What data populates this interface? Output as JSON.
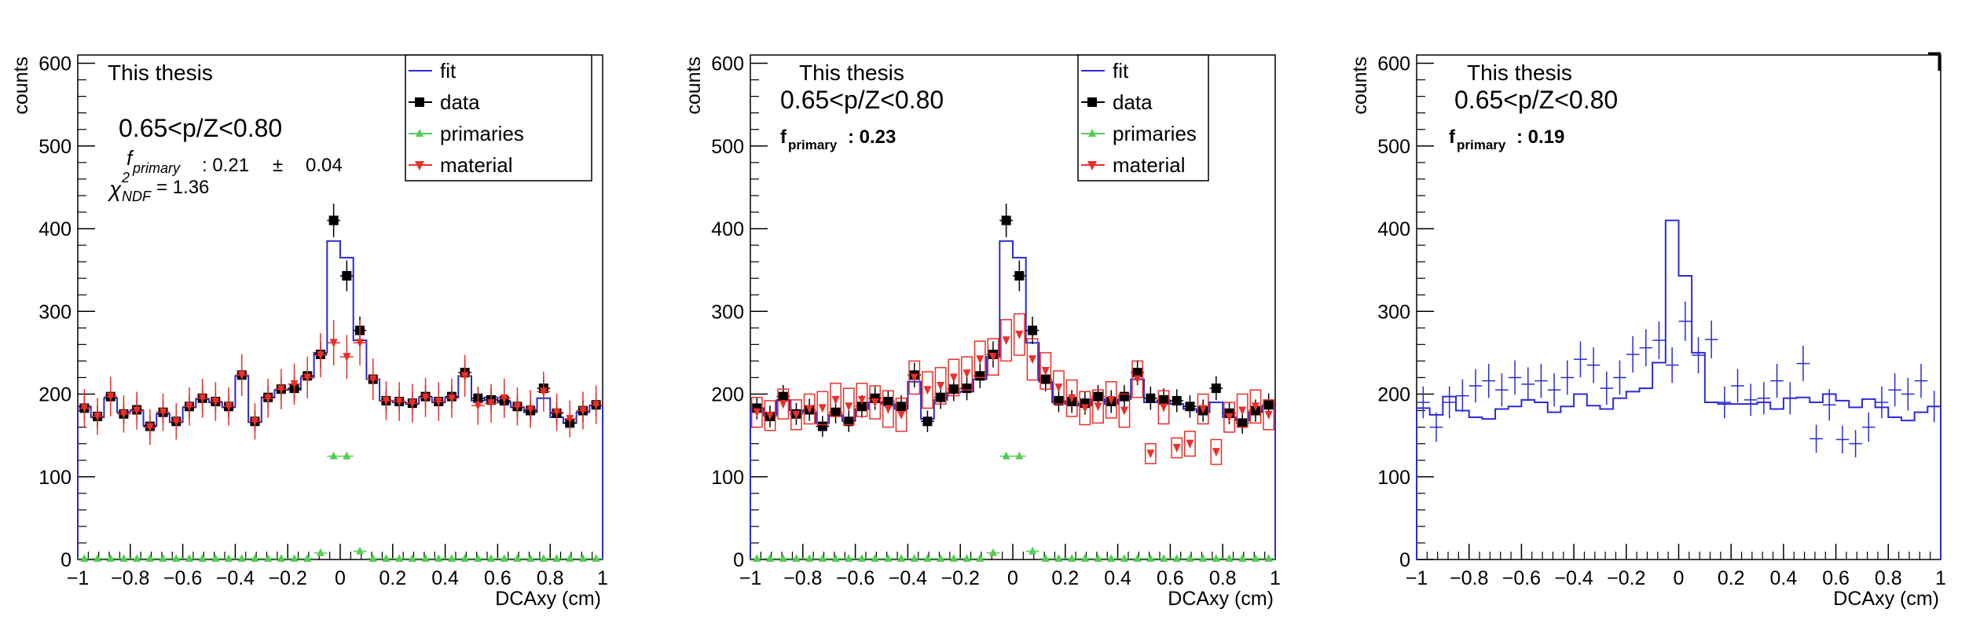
{
  "chart_data": [
    {
      "type": "line",
      "panel": "left",
      "x": [
        -0.975,
        -0.925,
        -0.875,
        -0.825,
        -0.775,
        -0.725,
        -0.675,
        -0.625,
        -0.575,
        -0.525,
        -0.475,
        -0.425,
        -0.375,
        -0.325,
        -0.275,
        -0.225,
        -0.175,
        -0.125,
        -0.075,
        -0.025,
        0.025,
        0.075,
        0.125,
        0.175,
        0.225,
        0.275,
        0.325,
        0.375,
        0.425,
        0.475,
        0.525,
        0.575,
        0.625,
        0.675,
        0.725,
        0.775,
        0.825,
        0.875,
        0.925,
        0.975
      ],
      "xlabel": "DCAxy (cm)",
      "ylabel": "counts",
      "xlim": [
        -1,
        1
      ],
      "ylim": [
        0,
        610
      ],
      "x_ticks": [
        "−1",
        "−0.8",
        "−0.6",
        "−0.4",
        "−0.2",
        "0",
        "0.2",
        "0.4",
        "0.6",
        "0.8",
        "1"
      ],
      "y_ticks": [
        "0",
        "100",
        "200",
        "300",
        "400",
        "500",
        "600"
      ],
      "annotations": {
        "label": "This thesis",
        "range": "0.65<p/Z<0.80",
        "fprimary_symbol": "f",
        "fprimary_sub": "primary",
        "fprimary_value": ": 0.21",
        "fprimary_pm": "±",
        "fprimary_err": "0.04",
        "chi2_symbol": "χ",
        "chi2_sup": "2",
        "chi2_sub": "NDF",
        "chi2_value": "= 1.36"
      },
      "legend": {
        "placement": "top-center",
        "entries": [
          "fit",
          "data",
          "primaries",
          "material"
        ]
      },
      "series": [
        {
          "name": "fit",
          "color": "#2b2bd6",
          "style": "step",
          "y": [
            185,
            172,
            195,
            178,
            180,
            162,
            176,
            166,
            184,
            194,
            190,
            184,
            222,
            166,
            196,
            205,
            205,
            220,
            250,
            385,
            365,
            265,
            218,
            192,
            190,
            188,
            196,
            190,
            196,
            222,
            192,
            196,
            190,
            184,
            178,
            195,
            172,
            165,
            178,
            186
          ]
        },
        {
          "name": "data",
          "color": "#000000",
          "style": "markers",
          "y": [
            183,
            173,
            197,
            176,
            181,
            161,
            178,
            167,
            185,
            195,
            191,
            185,
            223,
            167,
            196,
            206,
            207,
            222,
            248,
            410,
            343,
            277,
            218,
            192,
            191,
            189,
            197,
            191,
            197,
            226,
            195,
            193,
            192,
            185,
            180,
            207,
            177,
            165,
            180,
            187
          ]
        },
        {
          "name": "primaries",
          "color": "#55cc55",
          "style": "triangles",
          "y": [
            1,
            1,
            1,
            1,
            1,
            1,
            1,
            1,
            1,
            1,
            1,
            1,
            1,
            1,
            1,
            1,
            1,
            1,
            8,
            125,
            125,
            10,
            1,
            1,
            1,
            1,
            1,
            1,
            1,
            1,
            1,
            1,
            1,
            1,
            1,
            1,
            1,
            1,
            1,
            1
          ]
        },
        {
          "name": "material",
          "color": "#e8302a",
          "style": "triangles-down",
          "y": [
            183,
            173,
            197,
            176,
            180,
            160,
            178,
            167,
            185,
            195,
            191,
            185,
            223,
            167,
            195,
            206,
            212,
            220,
            247,
            262,
            245,
            262,
            218,
            192,
            191,
            189,
            196,
            191,
            195,
            222,
            186,
            189,
            195,
            185,
            182,
            203,
            178,
            170,
            180,
            187
          ]
        }
      ]
    },
    {
      "type": "line",
      "panel": "middle",
      "x": [
        -0.975,
        -0.925,
        -0.875,
        -0.825,
        -0.775,
        -0.725,
        -0.675,
        -0.625,
        -0.575,
        -0.525,
        -0.475,
        -0.425,
        -0.375,
        -0.325,
        -0.275,
        -0.225,
        -0.175,
        -0.125,
        -0.075,
        -0.025,
        0.025,
        0.075,
        0.125,
        0.175,
        0.225,
        0.275,
        0.325,
        0.375,
        0.425,
        0.475,
        0.525,
        0.575,
        0.625,
        0.675,
        0.725,
        0.775,
        0.825,
        0.875,
        0.925,
        0.975
      ],
      "xlabel": "DCAxy (cm)",
      "ylabel": "counts",
      "xlim": [
        -1,
        1
      ],
      "ylim": [
        0,
        610
      ],
      "x_ticks": [
        "−1",
        "−0.8",
        "−0.6",
        "−0.4",
        "−0.2",
        "0",
        "0.2",
        "0.4",
        "0.6",
        "0.8",
        "1"
      ],
      "y_ticks": [
        "0",
        "100",
        "200",
        "300",
        "400",
        "500",
        "600"
      ],
      "annotations": {
        "label": "This thesis",
        "range": "0.65<p/Z<0.80",
        "fprimary_symbol": "f",
        "fprimary_sub": "primary",
        "fprimary_value": ": 0.23"
      },
      "legend": {
        "placement": "top-center",
        "entries": [
          "fit",
          "data",
          "primaries",
          "material"
        ]
      },
      "series": [
        {
          "name": "fit",
          "color": "#2b2bd6",
          "style": "step",
          "y": [
            183,
            175,
            193,
            180,
            178,
            165,
            175,
            168,
            182,
            190,
            188,
            182,
            215,
            170,
            193,
            202,
            203,
            218,
            245,
            385,
            365,
            262,
            215,
            190,
            188,
            186,
            194,
            188,
            194,
            218,
            190,
            192,
            188,
            182,
            178,
            190,
            172,
            168,
            178,
            185
          ]
        },
        {
          "name": "data",
          "color": "#000000",
          "style": "markers",
          "y": [
            183,
            173,
            197,
            176,
            181,
            161,
            178,
            167,
            185,
            195,
            191,
            185,
            223,
            167,
            196,
            206,
            207,
            222,
            248,
            410,
            343,
            277,
            218,
            192,
            191,
            189,
            197,
            191,
            197,
            226,
            195,
            193,
            192,
            185,
            180,
            207,
            177,
            165,
            180,
            187
          ]
        },
        {
          "name": "primaries",
          "color": "#55cc55",
          "style": "triangles",
          "y": [
            1,
            1,
            1,
            1,
            1,
            1,
            1,
            1,
            1,
            1,
            1,
            1,
            1,
            1,
            1,
            1,
            1,
            1,
            8,
            125,
            125,
            10,
            1,
            1,
            1,
            1,
            1,
            1,
            1,
            1,
            1,
            1,
            1,
            1,
            1,
            1,
            1,
            1,
            1,
            1
          ]
        },
        {
          "name": "material",
          "color": "#e8302a",
          "style": "triangles-down-boxes",
          "y": [
            178,
            174,
            188,
            175,
            182,
            183,
            193,
            185,
            193,
            190,
            182,
            175,
            220,
            205,
            210,
            220,
            225,
            242,
            245,
            265,
            272,
            242,
            228,
            208,
            195,
            183,
            185,
            193,
            180,
            218,
            128,
            184,
            135,
            140,
            182,
            130,
            172,
            180,
            185,
            175
          ],
          "err": [
            18,
            18,
            18,
            18,
            18,
            20,
            20,
            22,
            20,
            20,
            22,
            20,
            20,
            22,
            22,
            22,
            20,
            22,
            22,
            25,
            25,
            25,
            22,
            20,
            22,
            20,
            20,
            22,
            20,
            22,
            12,
            20,
            12,
            15,
            18,
            15,
            18,
            20,
            20,
            18
          ]
        }
      ]
    },
    {
      "type": "line",
      "panel": "right",
      "x": [
        -0.975,
        -0.925,
        -0.875,
        -0.825,
        -0.775,
        -0.725,
        -0.675,
        -0.625,
        -0.575,
        -0.525,
        -0.475,
        -0.425,
        -0.375,
        -0.325,
        -0.275,
        -0.225,
        -0.175,
        -0.125,
        -0.075,
        -0.025,
        0.025,
        0.075,
        0.125,
        0.175,
        0.225,
        0.275,
        0.325,
        0.375,
        0.425,
        0.475,
        0.525,
        0.575,
        0.625,
        0.675,
        0.725,
        0.775,
        0.825,
        0.875,
        0.925,
        0.975
      ],
      "xlabel": "DCAxy (cm)",
      "ylabel": "counts",
      "xlim": [
        -1,
        1
      ],
      "ylim": [
        0,
        610
      ],
      "x_ticks": [
        "−1",
        "−0.8",
        "−0.6",
        "−0.4",
        "−0.2",
        "0",
        "0.2",
        "0.4",
        "0.6",
        "0.8",
        "1"
      ],
      "y_ticks": [
        "0",
        "100",
        "200",
        "300",
        "400",
        "500",
        "600"
      ],
      "annotations": {
        "label": "This thesis",
        "range": "0.65<p/Z<0.80",
        "fprimary_symbol": "f",
        "fprimary_sub": "primary",
        "fprimary_value": ": 0.19"
      },
      "legend": null,
      "series": [
        {
          "name": "",
          "color": "#2b2bd6",
          "style": "step",
          "y": [
            183,
            175,
            197,
            180,
            172,
            170,
            182,
            185,
            193,
            190,
            178,
            185,
            200,
            186,
            182,
            195,
            203,
            207,
            238,
            410,
            343,
            250,
            190,
            188,
            188,
            188,
            190,
            182,
            195,
            196,
            190,
            200,
            192,
            184,
            194,
            184,
            172,
            168,
            178,
            185
          ]
        },
        {
          "name": "",
          "color": "#2b2bd6",
          "style": "crosses",
          "y": [
            190,
            160,
            190,
            198,
            210,
            216,
            205,
            220,
            212,
            216,
            205,
            220,
            242,
            235,
            207,
            220,
            248,
            256,
            265,
            235,
            288,
            247,
            266,
            190,
            210,
            193,
            195,
            216,
            195,
            237,
            146,
            187,
            145,
            140,
            160,
            190,
            205,
            200,
            216,
            185
          ]
        }
      ]
    }
  ]
}
